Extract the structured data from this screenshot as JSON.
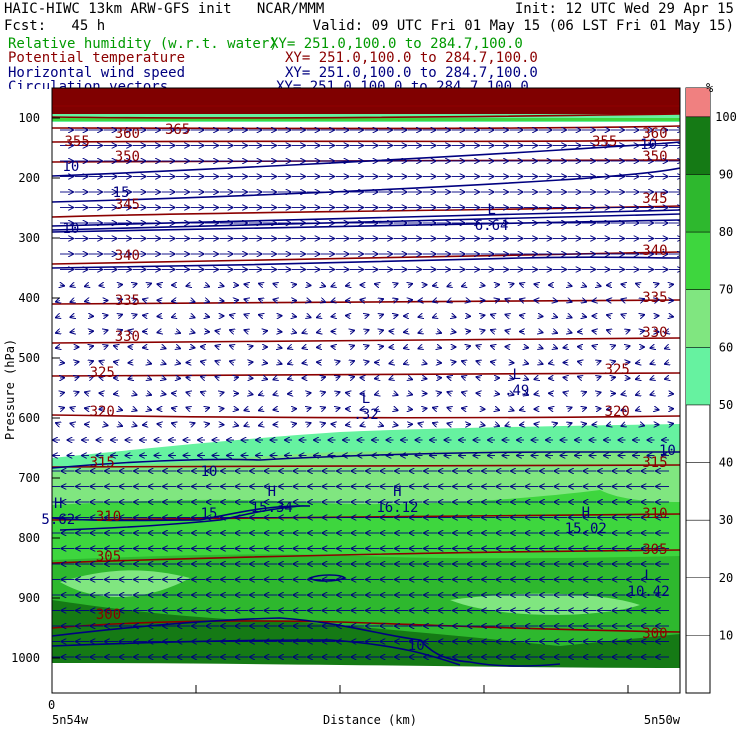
{
  "header": {
    "line1_left": "HAIC-HIWC 13km ARW-GFS init   NCAR/MMM",
    "line1_right": "Init: 12 UTC Wed 29 Apr 15",
    "line2_left": "Fcst:   45 h",
    "line2_right": "Valid: 09 UTC Fri 01 May 15 (06 LST Fri 01 May 15)",
    "fields": [
      {
        "name": "Relative humidity (w.r.t. water)",
        "xy": "XY= 251.0,100.0 to 284.7,100.0",
        "color": "#009a00"
      },
      {
        "name": "Potential temperature",
        "xy": "XY= 251.0,100.0 to 284.7,100.0",
        "color": "#8b0000"
      },
      {
        "name": "Horizontal wind speed",
        "xy": "XY= 251.0,100.0 to 284.7,100.0",
        "color": "#000080"
      },
      {
        "name": "Circulation vectors",
        "xy": "XY= 251.0,100.0 to 284.7,100.0",
        "color": "#000080"
      }
    ]
  },
  "chart_data": {
    "type": "heatmap",
    "xlabel": "Distance (km)",
    "ylabel": "Pressure (hPa)",
    "x_ticks": [
      "0"
    ],
    "x_endpoints": [
      "5n54w",
      "5n50w"
    ],
    "y_ticks": [
      100,
      200,
      300,
      400,
      500,
      600,
      700,
      800,
      900,
      1000
    ],
    "colorbar": {
      "unit": "%",
      "ticks": [
        10,
        20,
        30,
        40,
        50,
        60,
        70,
        80,
        90,
        100
      ],
      "levels": [
        {
          "from": 50,
          "to": 60,
          "color": "#66f2a0"
        },
        {
          "from": 60,
          "to": 70,
          "color": "#80e680"
        },
        {
          "from": 70,
          "to": 80,
          "color": "#3ed63e"
        },
        {
          "from": 80,
          "to": 90,
          "color": "#2eb82e"
        },
        {
          "from": 90,
          "to": 100,
          "color": "#157a15"
        },
        {
          "from": 100,
          "to": 105,
          "color": "#f08080"
        }
      ]
    },
    "theta_labels": [
      {
        "value": "365",
        "p": 120,
        "x": 0.2
      },
      {
        "value": "360",
        "p": 127,
        "x": 0.12
      },
      {
        "value": "360",
        "p": 127,
        "x": 0.96
      },
      {
        "value": "355",
        "p": 140,
        "x": 0.04
      },
      {
        "value": "355",
        "p": 140,
        "x": 0.88
      },
      {
        "value": "350",
        "p": 165,
        "x": 0.12
      },
      {
        "value": "350",
        "p": 165,
        "x": 0.96
      },
      {
        "value": "345",
        "p": 245,
        "x": 0.12
      },
      {
        "value": "345",
        "p": 235,
        "x": 0.96
      },
      {
        "value": "340",
        "p": 330,
        "x": 0.12
      },
      {
        "value": "340",
        "p": 322,
        "x": 0.96
      },
      {
        "value": "335",
        "p": 405,
        "x": 0.12
      },
      {
        "value": "335",
        "p": 400,
        "x": 0.96
      },
      {
        "value": "330",
        "p": 465,
        "x": 0.12
      },
      {
        "value": "330",
        "p": 458,
        "x": 0.96
      },
      {
        "value": "325",
        "p": 525,
        "x": 0.08
      },
      {
        "value": "325",
        "p": 520,
        "x": 0.9
      },
      {
        "value": "320",
        "p": 590,
        "x": 0.08
      },
      {
        "value": "320",
        "p": 590,
        "x": 0.9
      },
      {
        "value": "315",
        "p": 675,
        "x": 0.08
      },
      {
        "value": "315",
        "p": 675,
        "x": 0.96
      },
      {
        "value": "310",
        "p": 765,
        "x": 0.09
      },
      {
        "value": "310",
        "p": 760,
        "x": 0.96
      },
      {
        "value": "305",
        "p": 832,
        "x": 0.09
      },
      {
        "value": "305",
        "p": 820,
        "x": 0.96
      },
      {
        "value": "300",
        "p": 928,
        "x": 0.09
      },
      {
        "value": "300",
        "p": 960,
        "x": 0.96
      }
    ],
    "wind_labels": [
      {
        "value": "10",
        "p": 182,
        "x": 0.03
      },
      {
        "value": "10",
        "p": 145,
        "x": 0.95
      },
      {
        "value": "15",
        "p": 225,
        "x": 0.11
      },
      {
        "value": "10",
        "p": 285,
        "x": 0.03
      },
      {
        "value": "10",
        "p": 690,
        "x": 0.25
      },
      {
        "value": "10",
        "p": 655,
        "x": 0.98
      },
      {
        "value": "15",
        "p": 760,
        "x": 0.25
      },
      {
        "value": "10",
        "p": 980,
        "x": 0.58
      }
    ],
    "extrema": [
      {
        "kind": "L",
        "value": "6.64",
        "p": 270,
        "x": 0.7
      },
      {
        "kind": "L",
        "value": ".49",
        "p": 545,
        "x": 0.74
      },
      {
        "kind": "L",
        "value": ".32",
        "p": 585,
        "x": 0.5
      },
      {
        "kind": "H",
        "value": "5.62",
        "p": 760,
        "x": 0.01
      },
      {
        "kind": "H",
        "value": "15.34",
        "p": 740,
        "x": 0.35
      },
      {
        "kind": "H",
        "value": "16.12",
        "p": 740,
        "x": 0.55
      },
      {
        "kind": "H",
        "value": "15.02",
        "p": 775,
        "x": 0.85
      },
      {
        "kind": "L",
        "value": "10.42",
        "p": 880,
        "x": 0.95
      }
    ]
  }
}
